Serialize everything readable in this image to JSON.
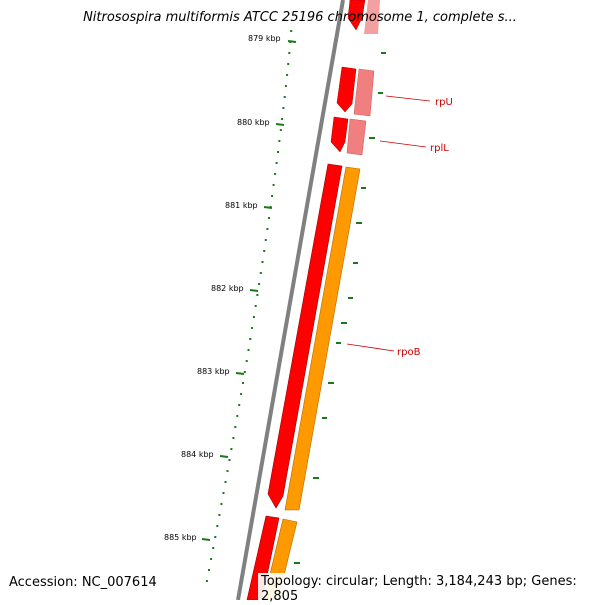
{
  "title": "Nitrosospira multiformis ATCC 25196 chromosome 1, complete s...",
  "footer": {
    "accession": "Accession: NC_007614",
    "summary": "Topology: circular; Length: 3,184,243 bp; Genes: 2,805"
  },
  "ticks": [
    "879 kbp",
    "880 kbp",
    "881 kbp",
    "882 kbp",
    "883 kbp",
    "884 kbp",
    "885 kbp"
  ],
  "genes": [
    "rpU",
    "rplL",
    "rpoB"
  ],
  "colors": {
    "backbone": "#808080",
    "cds": "#ff0000",
    "cds_light": "#f08080",
    "rna": "#ff9900",
    "gc_ticks": "#1a7a1a",
    "label": "#cc0000"
  }
}
